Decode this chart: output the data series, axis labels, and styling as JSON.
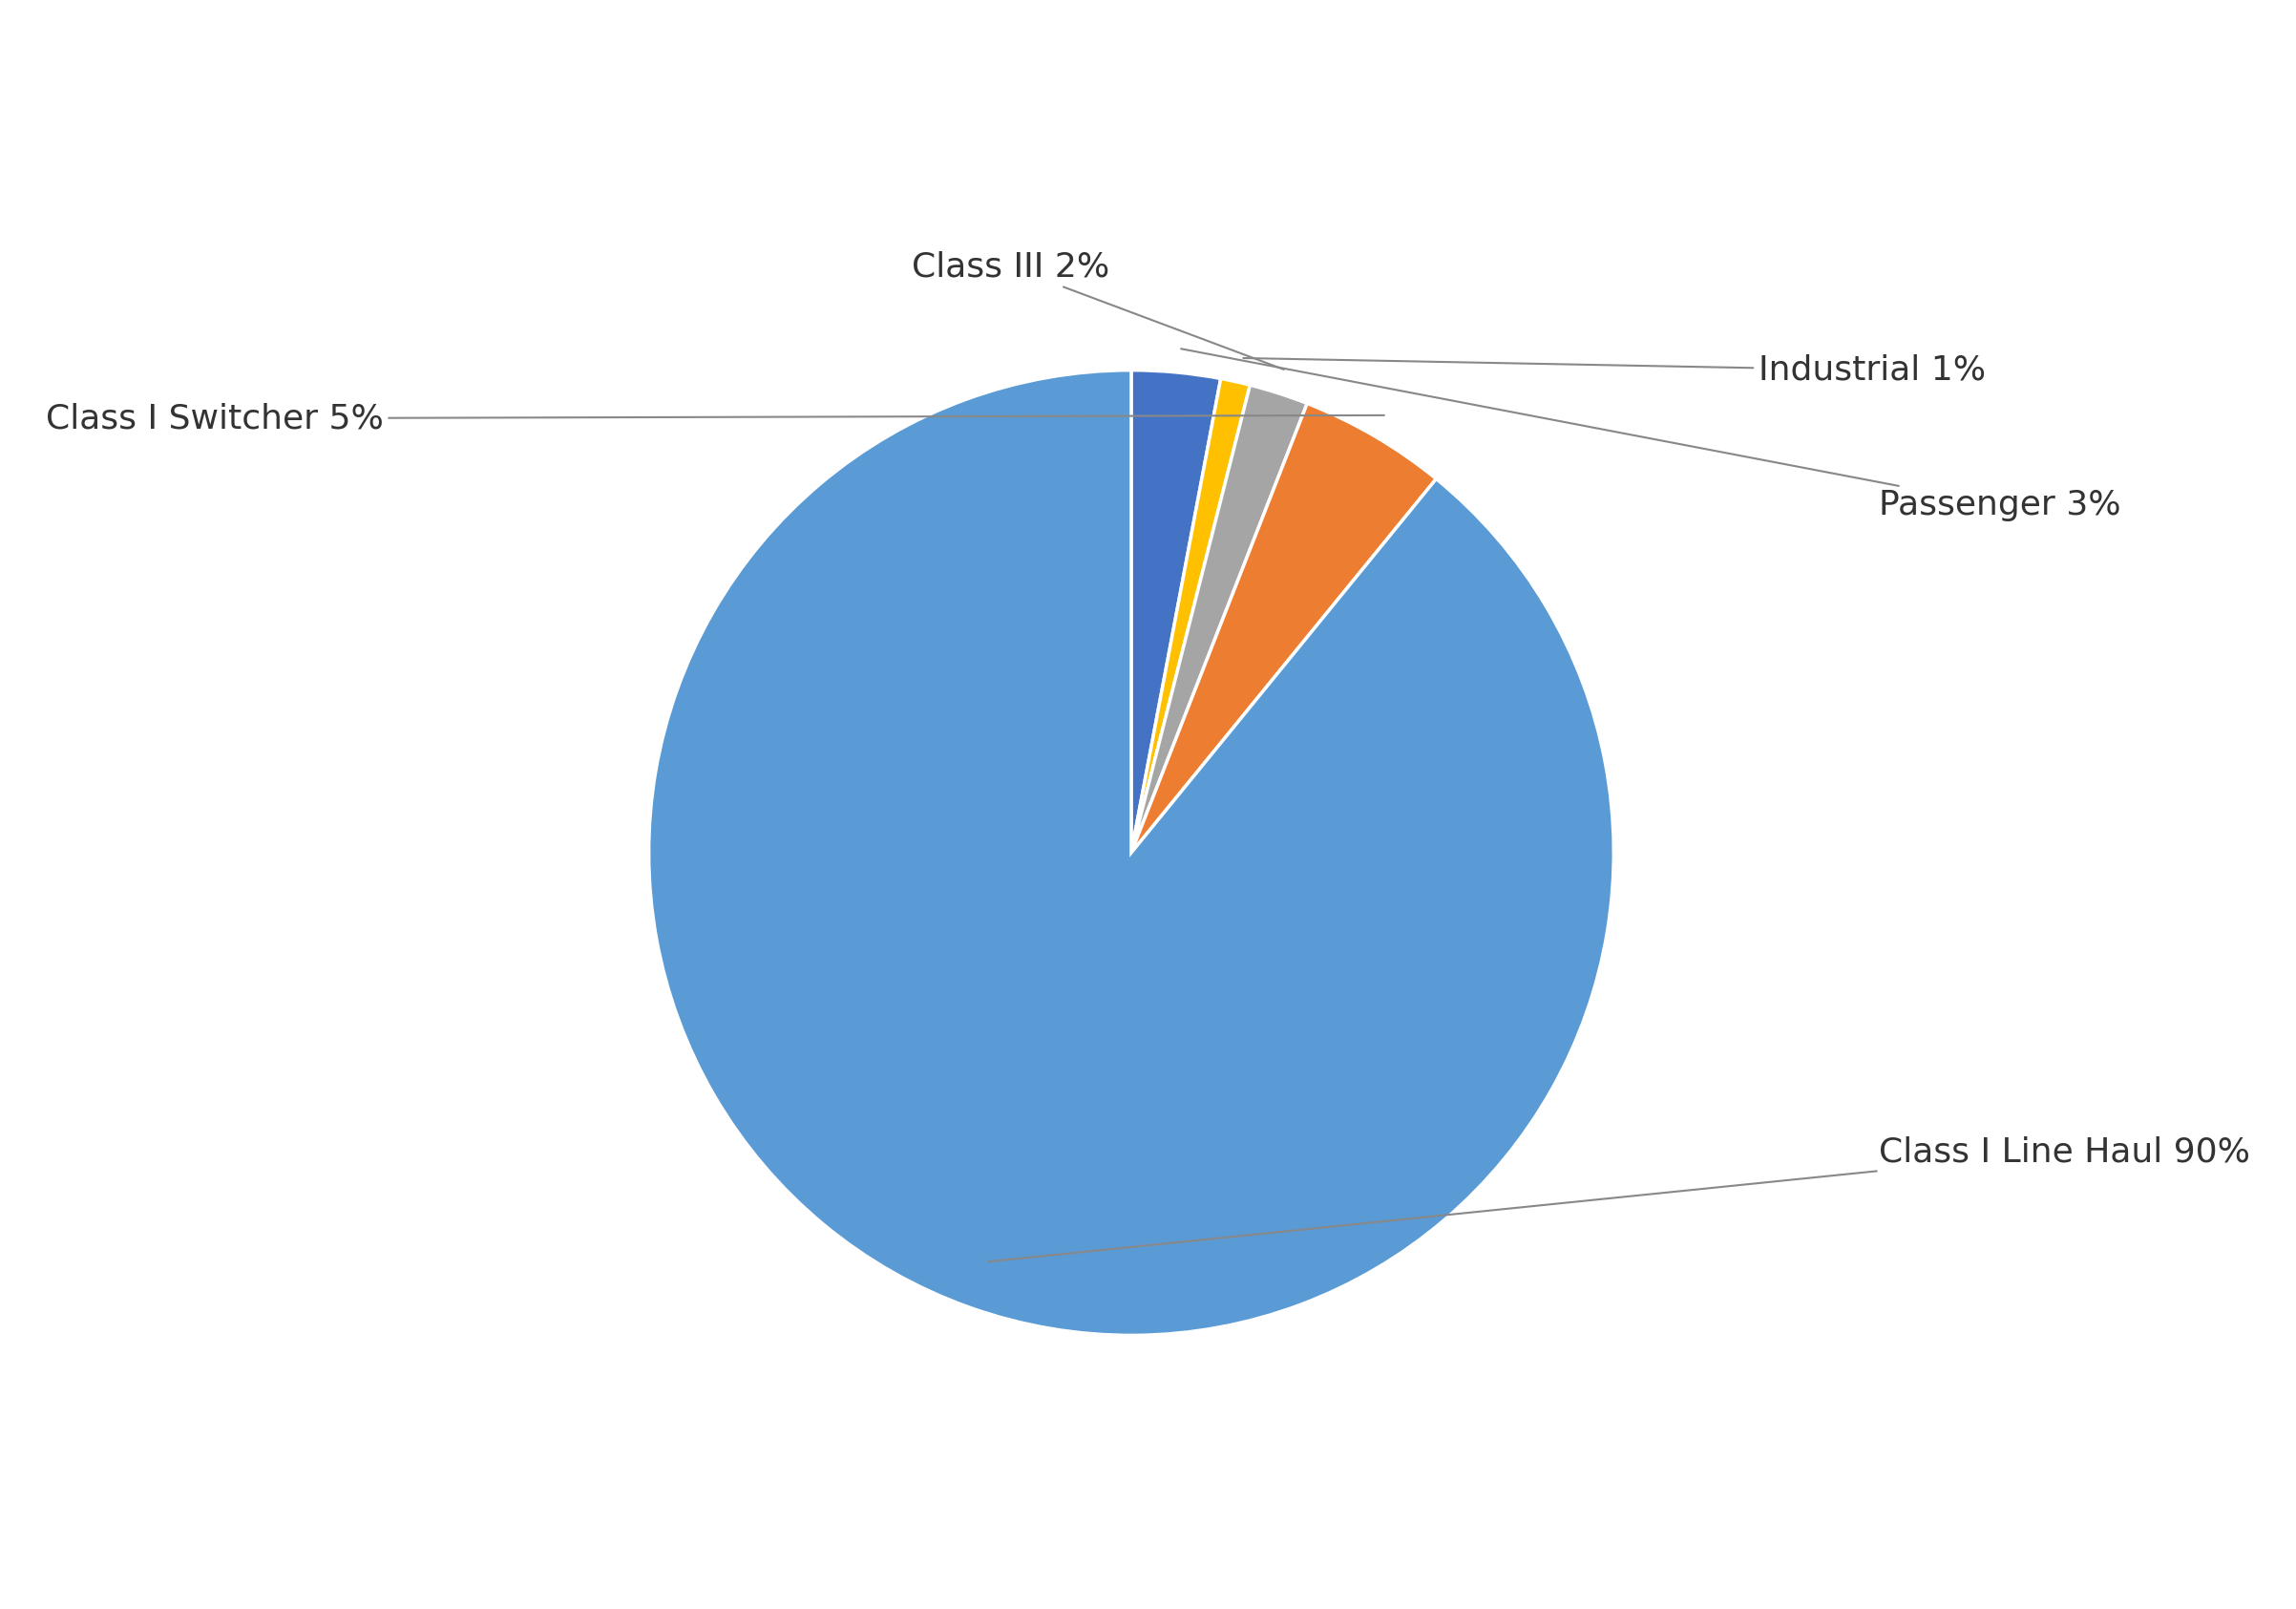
{
  "label_display": [
    "Class I Line Haul 90%",
    "Class I Switcher 5%",
    "Class III 2%",
    "Industrial 1%",
    "Passenger 3%"
  ],
  "values": [
    90,
    5,
    2,
    1,
    3
  ],
  "colors": [
    "#5B9BD5",
    "#ED7D31",
    "#A5A5A5",
    "#FFC000",
    "#4472C4"
  ],
  "background_color": "#ffffff",
  "font_size": 26,
  "annotation_color": "#333333",
  "line_color": "#888888",
  "edge_color": "#ffffff",
  "edge_linewidth": 2.5
}
